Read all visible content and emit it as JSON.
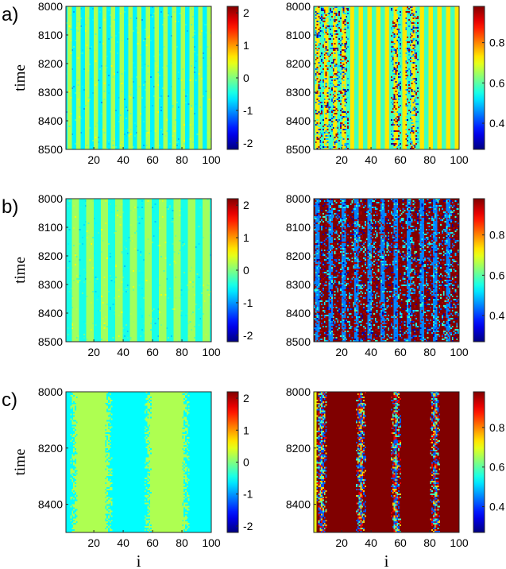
{
  "chart_data": [
    {
      "type": "heatmap",
      "row_label": "a)",
      "ylabel": "time",
      "xlabel": "",
      "x_ticks": [
        "20",
        "40",
        "60",
        "80",
        "100"
      ],
      "y_ticks": [
        "8000",
        "8100",
        "8200",
        "8300",
        "8400",
        "8500"
      ],
      "xlim": [
        1,
        100
      ],
      "ylim": [
        8000,
        8500
      ],
      "colorbar_ticks": [
        "2",
        "1",
        "0",
        "-1",
        "-2"
      ],
      "clim": [
        -2.2,
        2.2
      ],
      "pattern": {
        "kind": "stripes",
        "base_value": -0.6,
        "stripe_value": 0.2,
        "stripe_centers": [
          3,
          9,
          15,
          21,
          27,
          33,
          39,
          45,
          51,
          57,
          63,
          69,
          75,
          81,
          87,
          93,
          99
        ],
        "stripe_width": 3
      }
    },
    {
      "type": "heatmap",
      "row_label": "",
      "ylabel": "",
      "xlabel": "",
      "x_ticks": [
        "20",
        "40",
        "60",
        "80",
        "100"
      ],
      "y_ticks": [
        "8000",
        "8100",
        "8200",
        "8300",
        "8400",
        "8500"
      ],
      "xlim": [
        1,
        100
      ],
      "ylim": [
        8000,
        8500
      ],
      "colorbar_ticks": [
        "0.8",
        "0.6",
        "0.4"
      ],
      "clim": [
        0.27,
        0.98
      ],
      "pattern": {
        "kind": "stripes_noisy",
        "base_value": 0.58,
        "stripe_value": 0.73,
        "stripe_centers": [
          3,
          9,
          15,
          21,
          27,
          33,
          39,
          45,
          51,
          57,
          63,
          69,
          75,
          81,
          87,
          93,
          99
        ],
        "stripe_width": 3,
        "noisy_bands": [
          [
            2,
            24
          ],
          [
            54,
            60
          ],
          [
            64,
            72
          ]
        ]
      }
    },
    {
      "type": "heatmap",
      "row_label": "b)",
      "ylabel": "time",
      "xlabel": "",
      "x_ticks": [
        "20",
        "40",
        "60",
        "80",
        "100"
      ],
      "y_ticks": [
        "8000",
        "8100",
        "8200",
        "8300",
        "8400",
        "8500"
      ],
      "xlim": [
        1,
        100
      ],
      "ylim": [
        8000,
        8500
      ],
      "colorbar_ticks": [
        "2",
        "1",
        "0",
        "-1",
        "-2"
      ],
      "clim": [
        -2.2,
        2.2
      ],
      "pattern": {
        "kind": "stripes",
        "base_value": -0.45,
        "stripe_value": 0.15,
        "stripe_centers": [
          7,
          17,
          27,
          37,
          47,
          57,
          67,
          77,
          87,
          97
        ],
        "stripe_width": 5
      }
    },
    {
      "type": "heatmap",
      "row_label": "",
      "ylabel": "",
      "xlabel": "",
      "x_ticks": [
        "20",
        "40",
        "60",
        "80",
        "100"
      ],
      "y_ticks": [
        "8000",
        "8100",
        "8200",
        "8300",
        "8400",
        "8500"
      ],
      "xlim": [
        1,
        100
      ],
      "ylim": [
        8000,
        8500
      ],
      "colorbar_ticks": [
        "0.8",
        "0.6",
        "0.4"
      ],
      "clim": [
        0.27,
        0.98
      ],
      "pattern": {
        "kind": "stripes_noisy",
        "base_value": 0.98,
        "stripe_value": 0.45,
        "stripe_centers": [
          3,
          12,
          21,
          30,
          39,
          48,
          57,
          66,
          75,
          84,
          93
        ],
        "stripe_width": 3,
        "noisy_bands": [
          [
            1,
            100
          ]
        ]
      }
    },
    {
      "type": "heatmap",
      "row_label": "c)",
      "ylabel": "time",
      "xlabel": "i",
      "x_ticks": [
        "20",
        "40",
        "60",
        "80",
        "100"
      ],
      "y_ticks": [
        "8000",
        "8200",
        "8400"
      ],
      "xlim": [
        1,
        100
      ],
      "ylim": [
        8000,
        8500
      ],
      "colorbar_ticks": [
        "2",
        "1",
        "0",
        "-1",
        "-2"
      ],
      "clim": [
        -2.2,
        2.2
      ],
      "pattern": {
        "kind": "bands",
        "base_value": -0.55,
        "band_value": 0.2,
        "bands": [
          [
            6,
            30
          ],
          [
            57,
            83
          ]
        ],
        "edge_noise": 3
      }
    },
    {
      "type": "heatmap",
      "row_label": "",
      "ylabel": "",
      "xlabel": "i",
      "x_ticks": [
        "20",
        "40",
        "60",
        "80",
        "100"
      ],
      "y_ticks": [
        "8000",
        "8200",
        "8400"
      ],
      "xlim": [
        1,
        100
      ],
      "ylim": [
        8000,
        8500
      ],
      "colorbar_ticks": [
        "0.8",
        "0.6",
        "0.4"
      ],
      "clim": [
        0.27,
        0.98
      ],
      "pattern": {
        "kind": "noisy_lines",
        "base_value": 0.98,
        "line_value": 0.5,
        "lines": [
          6,
          33,
          57,
          84
        ],
        "line_width": 4,
        "left_edge_value": 0.7
      }
    }
  ]
}
